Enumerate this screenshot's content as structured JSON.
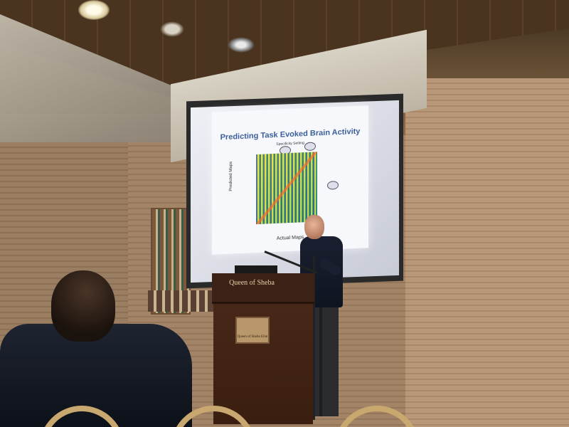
{
  "scene": {
    "type": "conference talk photo",
    "slide": {
      "title": "Predicting Task Evoked Brain Activity",
      "subtitle": "Specificity Setting",
      "y_axis_label": "Predicted Maps",
      "x_axis_label": "Actual Maps"
    },
    "podium": {
      "logo_text": "Queen of Sheba",
      "plaque_text": "Queen of Sheba Eilat"
    }
  }
}
